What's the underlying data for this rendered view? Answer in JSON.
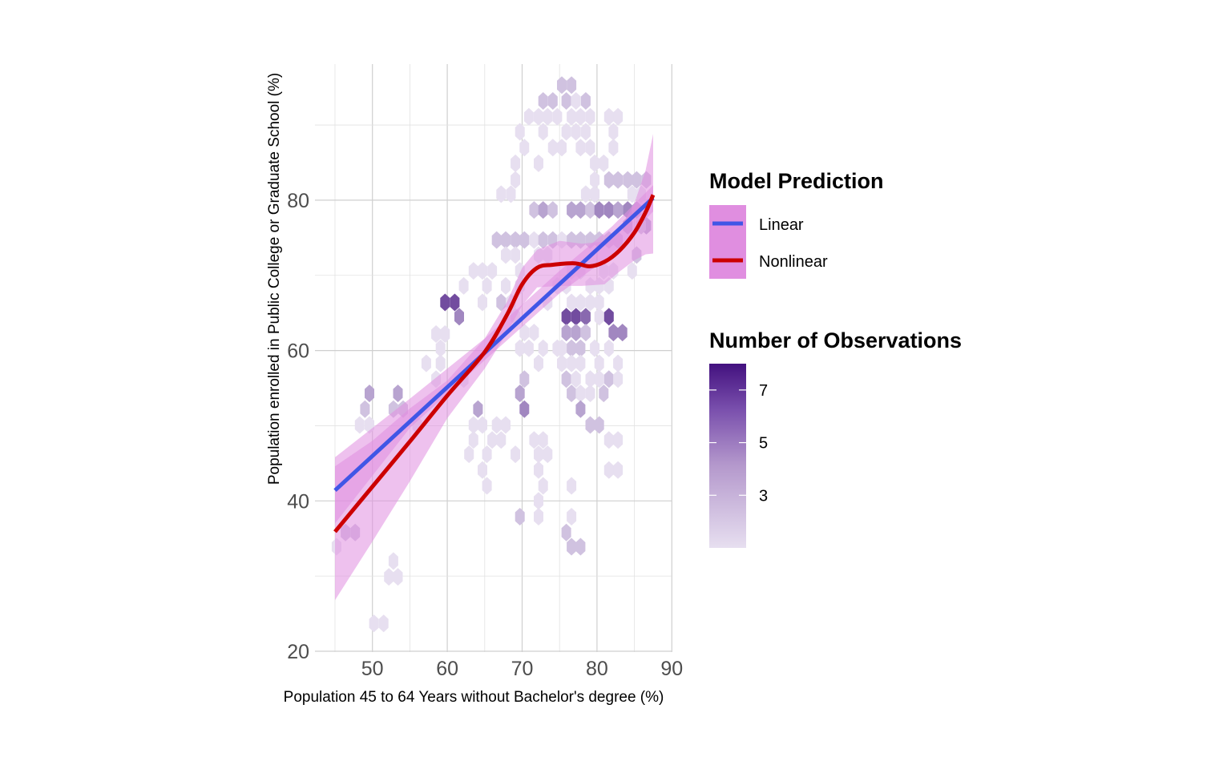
{
  "chart_data": {
    "type": "scatter",
    "subtype": "hexbin-with-regression",
    "xlabel": "Population 45 to 64 Years without Bachelor's degree (%)",
    "ylabel": "Population enrolled in Public College or Graduate School (%)",
    "xlim": [
      45,
      90
    ],
    "ylim": [
      20,
      98
    ],
    "x_ticks": [
      "50",
      "60",
      "70",
      "80",
      "90"
    ],
    "y_ticks": [
      "20",
      "40",
      "60",
      "80"
    ],
    "x_tick_values": [
      50,
      60,
      70,
      80,
      90
    ],
    "y_tick_values": [
      20,
      40,
      60,
      80
    ],
    "legend_model": {
      "title": "Model Prediction",
      "items": [
        {
          "label": "Linear",
          "color": "#4056e6"
        },
        {
          "label": "Nonlinear",
          "color": "#cc0000"
        }
      ],
      "band_color": "#e08ee0"
    },
    "legend_count": {
      "title": "Number of Observations",
      "labels": [
        "7",
        "5",
        "3"
      ],
      "values": [
        7,
        5,
        3
      ],
      "min": 1,
      "max": 8,
      "color_low": "#e7dff0",
      "color_high": "#43117f"
    },
    "series": [
      {
        "name": "Linear",
        "color": "#4056e6",
        "x": [
          45,
          87.5
        ],
        "y": [
          41.4,
          80.3
        ],
        "ci_upper": [
          [
            45,
            45.8
          ],
          [
            55,
            53.6
          ],
          [
            65,
            61.6
          ],
          [
            75,
            70.6
          ],
          [
            82,
            76.5
          ],
          [
            87.5,
            82.0
          ]
        ],
        "ci_lower": [
          [
            45,
            37.0
          ],
          [
            55,
            49.7
          ],
          [
            65,
            58.7
          ],
          [
            75,
            67.6
          ],
          [
            82,
            72.8
          ],
          [
            87.5,
            78.5
          ]
        ]
      },
      {
        "name": "Nonlinear",
        "color": "#cc0000",
        "x": [
          45,
          50,
          55,
          60,
          65,
          68,
          70,
          72,
          74,
          77,
          79,
          81,
          83,
          85,
          86.5,
          87.5
        ],
        "y": [
          35.9,
          41.9,
          47.9,
          54.0,
          59.8,
          64.8,
          68.8,
          71.0,
          71.4,
          71.6,
          71.2,
          71.8,
          73.3,
          75.7,
          78.4,
          80.7
        ],
        "ci_upper": [
          [
            45,
            44.6
          ],
          [
            50,
            48.0
          ],
          [
            55,
            52.3
          ],
          [
            60,
            56.0
          ],
          [
            65,
            61.6
          ],
          [
            68,
            66.5
          ],
          [
            70,
            71.0
          ],
          [
            72,
            73.4
          ],
          [
            75,
            74.6
          ],
          [
            78,
            74.2
          ],
          [
            81,
            74.5
          ],
          [
            83,
            76.0
          ],
          [
            85,
            79.6
          ],
          [
            86.5,
            84.0
          ],
          [
            87.5,
            88.8
          ]
        ],
        "ci_lower": [
          [
            45,
            26.8
          ],
          [
            50,
            34.6
          ],
          [
            55,
            42.6
          ],
          [
            60,
            51.0
          ],
          [
            65,
            57.6
          ],
          [
            68,
            62.4
          ],
          [
            70,
            66.0
          ],
          [
            72,
            68.4
          ],
          [
            75,
            68.6
          ],
          [
            78,
            68.6
          ],
          [
            81,
            68.8
          ],
          [
            83,
            70.5
          ],
          [
            85,
            72.0
          ],
          [
            86.5,
            72.8
          ],
          [
            87.5,
            72.9
          ]
        ]
      }
    ],
    "hexbins": [
      [
        45.2,
        33.9,
        1
      ],
      [
        46.4,
        35.8,
        2
      ],
      [
        47.7,
        35.8,
        2
      ],
      [
        48.3,
        50.1,
        1
      ],
      [
        49.0,
        52.2,
        2
      ],
      [
        49.6,
        50.1,
        1
      ],
      [
        49.6,
        54.3,
        3
      ],
      [
        50.2,
        23.7,
        1
      ],
      [
        51.5,
        23.7,
        1
      ],
      [
        52.2,
        29.9,
        1
      ],
      [
        52.8,
        32.0,
        1
      ],
      [
        53.4,
        29.9,
        1
      ],
      [
        52.8,
        52.2,
        2
      ],
      [
        53.4,
        54.3,
        3
      ],
      [
        54.1,
        52.2,
        2
      ],
      [
        56.0,
        50.1,
        1
      ],
      [
        57.2,
        58.3,
        1
      ],
      [
        58.5,
        62.2,
        1
      ],
      [
        59.1,
        60.3,
        1
      ],
      [
        59.1,
        58.3,
        1
      ],
      [
        59.7,
        62.2,
        1
      ],
      [
        58.5,
        56.2,
        1
      ],
      [
        59.7,
        66.4,
        6
      ],
      [
        61.0,
        66.4,
        6
      ],
      [
        61.6,
        64.5,
        4
      ],
      [
        62.2,
        68.6,
        1
      ],
      [
        63.5,
        70.6,
        1
      ],
      [
        64.7,
        70.6,
        1
      ],
      [
        65.3,
        68.6,
        1
      ],
      [
        64.7,
        66.4,
        1
      ],
      [
        66.0,
        70.6,
        1
      ],
      [
        62.2,
        56.2,
        1
      ],
      [
        62.9,
        46.2,
        1
      ],
      [
        63.5,
        48.1,
        1
      ],
      [
        63.5,
        50.1,
        1
      ],
      [
        64.1,
        52.2,
        3
      ],
      [
        64.7,
        50.1,
        1
      ],
      [
        64.7,
        44.1,
        1
      ],
      [
        65.3,
        42.0,
        1
      ],
      [
        65.3,
        46.2,
        1
      ],
      [
        66.0,
        48.1,
        1
      ],
      [
        66.6,
        50.1,
        1
      ],
      [
        67.8,
        50.1,
        1
      ],
      [
        67.2,
        48.1,
        1
      ],
      [
        66.6,
        74.7,
        2
      ],
      [
        67.8,
        74.7,
        2
      ],
      [
        69.1,
        74.7,
        2
      ],
      [
        70.3,
        74.7,
        2
      ],
      [
        71.6,
        74.7,
        1
      ],
      [
        72.8,
        74.7,
        2
      ],
      [
        74.1,
        74.7,
        2
      ],
      [
        75.3,
        74.7,
        1
      ],
      [
        76.6,
        74.7,
        2
      ],
      [
        77.8,
        74.7,
        2
      ],
      [
        79.1,
        74.7,
        2
      ],
      [
        80.3,
        74.7,
        2
      ],
      [
        81.6,
        74.7,
        2
      ],
      [
        82.8,
        74.7,
        2
      ],
      [
        67.2,
        80.8,
        1
      ],
      [
        68.5,
        80.8,
        1
      ],
      [
        69.1,
        82.7,
        1
      ],
      [
        71.6,
        78.7,
        2
      ],
      [
        72.8,
        78.7,
        3
      ],
      [
        74.1,
        78.7,
        2
      ],
      [
        76.6,
        78.7,
        3
      ],
      [
        77.8,
        78.7,
        3
      ],
      [
        79.1,
        78.7,
        2
      ],
      [
        80.3,
        78.7,
        4
      ],
      [
        81.6,
        78.7,
        4
      ],
      [
        82.8,
        78.7,
        3
      ],
      [
        84.1,
        78.7,
        4
      ],
      [
        85.3,
        78.7,
        3
      ],
      [
        69.1,
        84.9,
        1
      ],
      [
        70.3,
        87.0,
        1
      ],
      [
        69.7,
        89.1,
        1
      ],
      [
        70.9,
        91.1,
        1
      ],
      [
        72.2,
        91.1,
        1
      ],
      [
        72.8,
        93.2,
        2
      ],
      [
        74.1,
        93.2,
        2
      ],
      [
        73.4,
        91.1,
        1
      ],
      [
        74.7,
        91.1,
        1
      ],
      [
        75.3,
        95.3,
        2
      ],
      [
        76.6,
        95.3,
        2
      ],
      [
        75.9,
        93.2,
        2
      ],
      [
        77.2,
        93.2,
        1
      ],
      [
        78.5,
        93.2,
        2
      ],
      [
        76.6,
        91.1,
        1
      ],
      [
        77.8,
        91.1,
        1
      ],
      [
        79.1,
        91.1,
        1
      ],
      [
        72.2,
        84.9,
        1
      ],
      [
        72.8,
        89.1,
        1
      ],
      [
        74.1,
        87.0,
        1
      ],
      [
        75.3,
        87.0,
        1
      ],
      [
        75.9,
        89.1,
        1
      ],
      [
        77.2,
        89.1,
        1
      ],
      [
        77.8,
        87.0,
        1
      ],
      [
        78.5,
        89.1,
        1
      ],
      [
        79.1,
        87.0,
        1
      ],
      [
        79.7,
        84.9,
        1
      ],
      [
        79.7,
        82.7,
        1
      ],
      [
        80.9,
        84.9,
        1
      ],
      [
        79.7,
        80.8,
        1
      ],
      [
        78.5,
        80.8,
        1
      ],
      [
        81.6,
        91.1,
        1
      ],
      [
        82.8,
        91.1,
        1
      ],
      [
        82.2,
        89.1,
        1
      ],
      [
        82.2,
        87.0,
        1
      ],
      [
        81.6,
        82.7,
        2
      ],
      [
        82.8,
        82.7,
        2
      ],
      [
        84.1,
        82.7,
        2
      ],
      [
        85.3,
        82.7,
        2
      ],
      [
        86.6,
        82.7,
        2
      ],
      [
        84.7,
        80.8,
        1
      ],
      [
        85.9,
        80.8,
        1
      ],
      [
        67.8,
        72.7,
        1
      ],
      [
        69.1,
        72.7,
        1
      ],
      [
        72.2,
        72.7,
        1
      ],
      [
        73.4,
        72.7,
        1
      ],
      [
        69.7,
        70.6,
        1
      ],
      [
        67.2,
        66.4,
        2
      ],
      [
        67.8,
        68.6,
        1
      ],
      [
        68.5,
        66.4,
        1
      ],
      [
        69.1,
        64.5,
        1
      ],
      [
        70.3,
        62.4,
        1
      ],
      [
        69.7,
        68.6,
        1
      ],
      [
        73.4,
        66.4,
        1
      ],
      [
        74.7,
        68.6,
        1
      ],
      [
        75.9,
        68.6,
        1
      ],
      [
        76.6,
        70.6,
        1
      ],
      [
        77.8,
        70.6,
        1
      ],
      [
        79.1,
        68.6,
        1
      ],
      [
        80.3,
        68.6,
        1
      ],
      [
        80.9,
        70.6,
        1
      ],
      [
        82.2,
        70.6,
        1
      ],
      [
        81.6,
        68.6,
        1
      ],
      [
        80.3,
        66.4,
        1
      ],
      [
        79.1,
        66.4,
        1
      ],
      [
        77.8,
        66.4,
        1
      ],
      [
        76.6,
        66.4,
        1
      ],
      [
        75.9,
        64.5,
        6
      ],
      [
        77.2,
        64.5,
        6
      ],
      [
        78.5,
        64.5,
        5
      ],
      [
        75.9,
        62.4,
        3
      ],
      [
        77.2,
        62.4,
        3
      ],
      [
        78.5,
        62.4,
        2
      ],
      [
        77.8,
        60.3,
        2
      ],
      [
        76.6,
        60.3,
        2
      ],
      [
        75.3,
        60.3,
        1
      ],
      [
        80.3,
        64.5,
        1
      ],
      [
        81.6,
        64.5,
        6
      ],
      [
        82.2,
        62.4,
        4
      ],
      [
        83.4,
        62.4,
        4
      ],
      [
        81.6,
        60.3,
        1
      ],
      [
        79.7,
        60.3,
        1
      ],
      [
        80.3,
        58.3,
        1
      ],
      [
        79.1,
        56.2,
        1
      ],
      [
        80.3,
        56.2,
        1
      ],
      [
        81.6,
        56.2,
        2
      ],
      [
        82.8,
        58.3,
        1
      ],
      [
        82.8,
        56.2,
        1
      ],
      [
        71.6,
        62.4,
        1
      ],
      [
        72.8,
        60.3,
        1
      ],
      [
        70.9,
        60.3,
        1
      ],
      [
        69.7,
        60.3,
        1
      ],
      [
        72.2,
        58.3,
        1
      ],
      [
        74.7,
        60.3,
        1
      ],
      [
        75.3,
        58.3,
        1
      ],
      [
        75.9,
        56.2,
        2
      ],
      [
        77.2,
        56.2,
        1
      ],
      [
        76.6,
        58.3,
        1
      ],
      [
        77.8,
        58.3,
        1
      ],
      [
        76.6,
        54.3,
        2
      ],
      [
        77.8,
        54.3,
        1
      ],
      [
        77.8,
        52.2,
        3
      ],
      [
        79.1,
        50.1,
        2
      ],
      [
        79.1,
        54.3,
        1
      ],
      [
        80.3,
        50.1,
        2
      ],
      [
        80.9,
        54.3,
        2
      ],
      [
        70.3,
        56.2,
        2
      ],
      [
        69.7,
        54.3,
        3
      ],
      [
        70.3,
        52.2,
        4
      ],
      [
        69.1,
        46.2,
        1
      ],
      [
        71.6,
        48.1,
        1
      ],
      [
        72.8,
        48.1,
        1
      ],
      [
        72.2,
        46.2,
        1
      ],
      [
        73.4,
        46.2,
        1
      ],
      [
        72.2,
        44.1,
        1
      ],
      [
        72.8,
        42.0,
        1
      ],
      [
        72.2,
        40.0,
        1
      ],
      [
        69.7,
        37.9,
        2
      ],
      [
        72.2,
        37.9,
        1
      ],
      [
        81.6,
        48.1,
        1
      ],
      [
        82.8,
        48.1,
        1
      ],
      [
        81.6,
        44.1,
        1
      ],
      [
        82.8,
        44.1,
        1
      ],
      [
        76.6,
        42.0,
        1
      ],
      [
        76.6,
        37.9,
        1
      ],
      [
        75.9,
        35.8,
        2
      ],
      [
        76.6,
        33.9,
        2
      ],
      [
        77.8,
        33.9,
        2
      ],
      [
        84.7,
        70.6,
        1
      ],
      [
        85.3,
        72.7,
        2
      ],
      [
        86.6,
        76.6,
        3
      ],
      [
        84.1,
        76.6,
        3
      ],
      [
        85.9,
        76.6,
        2
      ]
    ]
  }
}
